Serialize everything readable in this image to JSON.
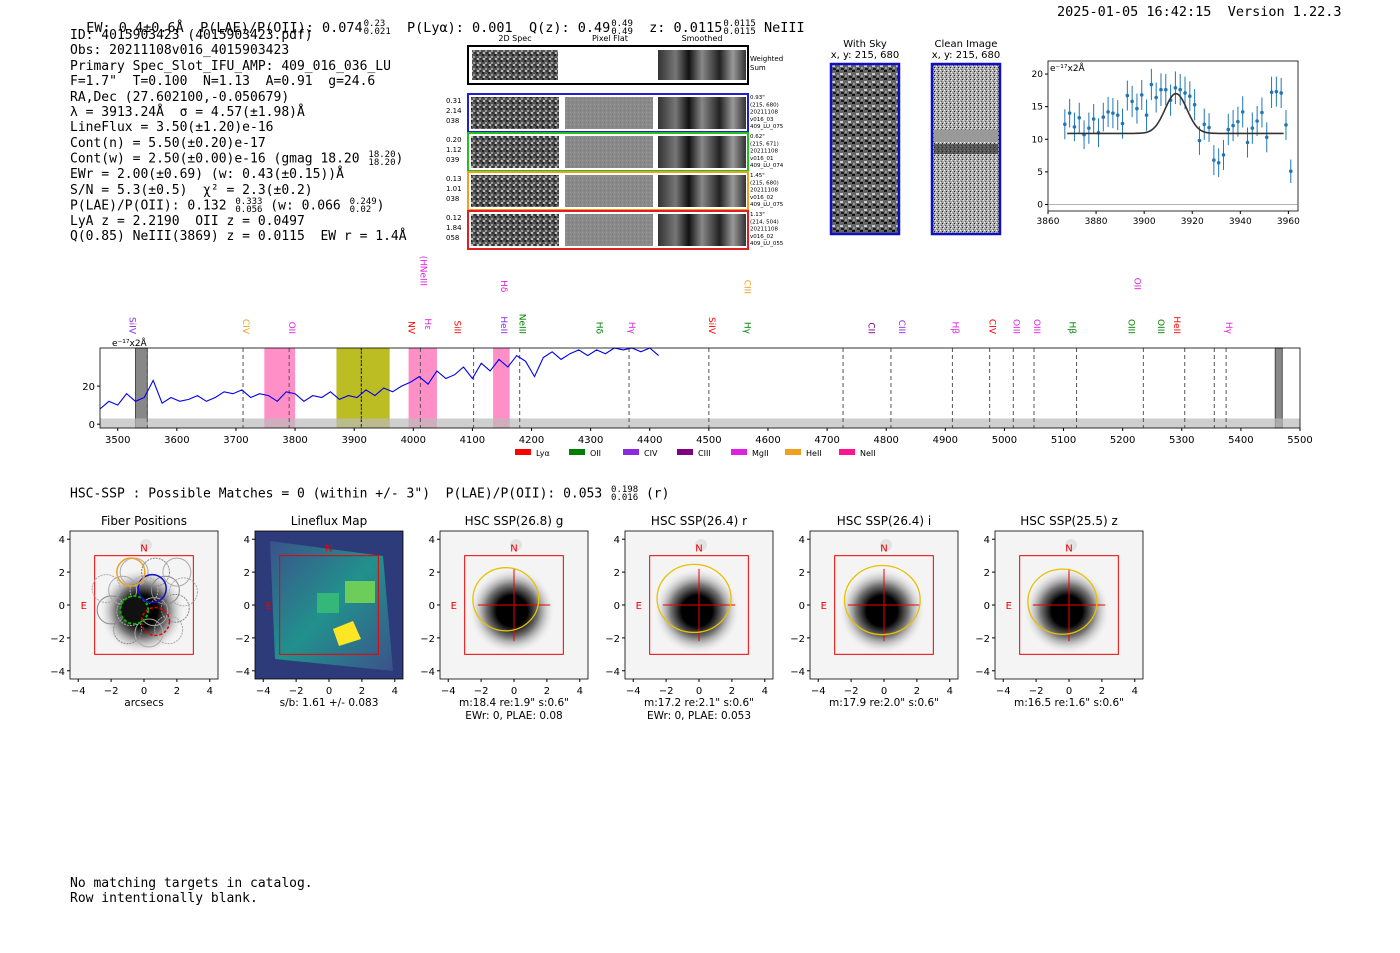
{
  "header": {
    "ew_label": "EW: 0.4±0.6Å",
    "plae_label": "P(LAE)/P(OII): 0.074",
    "plae_hi": "0.23",
    "plae_lo": "0.021",
    "plya": "P(Lyα): 0.001",
    "qz_label": "Q(z): 0.49",
    "qz_hi": "0.49",
    "qz_lo": "0.49",
    "z_label": "z: 0.0115",
    "z_hi": "0.0115",
    "z_lo": "0.0115",
    "line": "NeIII",
    "datetime": "2025-01-05 16:42:15",
    "version": "Version 1.22.3"
  },
  "info": {
    "id": "ID: 4015903423 (4015903423.pdf)",
    "obs": "Obs: 20211108v016_4015903423",
    "slot": "Primary Spec_Slot_IFU_AMP: 409_016_036_LU",
    "params": "F=1.7\"  T=0.100  N=1.13  A=0.91  g=24.6",
    "radec": "RA,Dec (27.602100,-0.050679)",
    "lambda": "λ = 3913.24Å  σ = 4.57(±1.98)Å",
    "lineflux": "LineFlux = 3.50(±1.20)e-16",
    "contn": "Cont(n) = 5.50(±0.20)e-17",
    "contw": "Cont(w) = 2.50(±0.00)e-16 (gmag 18.20",
    "contw_hi": "18.20",
    "contw_lo": "18.20",
    "ewr": "EWr = 2.00(±0.69) (w: 0.43(±0.15))Å",
    "sn": "S/N = 5.3(±0.5)  χ² = 2.3(±0.2)",
    "plae": "P(LAE)/P(OII): 0.132",
    "plae_hi": "0.333",
    "plae_lo": "0.056",
    "plae_w": "(w: 0.066",
    "plae_w_hi": "0.249",
    "plae_w_lo": "0.02",
    "lya": "LyA z = 2.2190  OII z = 0.0497",
    "q": "Q(0.85) NeIII(3869) z = 0.0115  EW r = 1.4Å"
  },
  "cutouts": {
    "col_headers": [
      "2D Spec",
      "Pixel Flat",
      "Smoothed"
    ],
    "weighted_sum": [
      "Weighted",
      "Sum"
    ],
    "rows": [
      {
        "left": [
          "0.31",
          "2.14",
          "038"
        ],
        "right": [
          "0.93\"",
          "(215, 680)",
          "20211108",
          "v016_03",
          "409_LU_075"
        ],
        "color": "#1f1fd0"
      },
      {
        "left": [
          "0.20",
          "1.12",
          "039"
        ],
        "right": [
          "0.62\"",
          "(215, 671)",
          "20211108",
          "v016_01",
          "409_LU_074"
        ],
        "color": "#22c022"
      },
      {
        "left": [
          "0.13",
          "1.01",
          "038"
        ],
        "right": [
          "1.45\"",
          "(215, 680)",
          "20211108",
          "v016_02",
          "409_LU_075"
        ],
        "color": "#f0a020"
      },
      {
        "left": [
          "0.12",
          "1.84",
          "058"
        ],
        "right": [
          "1.13\"",
          "(214, 504)",
          "20211108",
          "v016_02",
          "409_LU_055"
        ],
        "color": "#e02020"
      }
    ],
    "with_sky": [
      "With Sky",
      "x, y: 215, 680"
    ],
    "clean": [
      "Clean Image",
      "x, y: 215, 680"
    ]
  },
  "chart_data": [
    {
      "type": "scatter",
      "id": "line-fit",
      "ylabel": "e⁻¹⁷x2Å",
      "xlim": [
        3860,
        3964
      ],
      "ylim": [
        -1,
        22
      ],
      "xticks": [
        3860,
        3880,
        3900,
        3920,
        3940,
        3960
      ],
      "yticks": [
        0,
        5,
        10,
        15,
        20
      ],
      "points_x": [
        3867,
        3869,
        3871,
        3873,
        3875,
        3877,
        3879,
        3881,
        3883,
        3885,
        3887,
        3889,
        3891,
        3893,
        3895,
        3897,
        3899,
        3901,
        3903,
        3905,
        3907,
        3909,
        3911,
        3913,
        3915,
        3917,
        3919,
        3921,
        3923,
        3925,
        3927,
        3929,
        3931,
        3933,
        3935,
        3937,
        3939,
        3941,
        3943,
        3945,
        3947,
        3949,
        3951,
        3953,
        3955,
        3957,
        3959,
        3961
      ],
      "points_y": [
        12.3,
        14.0,
        11.9,
        13.3,
        10.7,
        11.7,
        13.1,
        11.0,
        13.4,
        14.2,
        14.0,
        13.7,
        12.4,
        16.7,
        15.8,
        14.7,
        16.8,
        13.7,
        18.4,
        16.4,
        17.6,
        17.6,
        16.0,
        17.9,
        17.6,
        17.1,
        16.6,
        15.3,
        9.8,
        12.3,
        11.8,
        6.8,
        6.4,
        7.6,
        11.5,
        12.1,
        12.7,
        14.2,
        9.5,
        11.7,
        12.8,
        14.1,
        10.3,
        17.2,
        17.3,
        17.1,
        12.2,
        5.1
      ],
      "errors": [
        2.3,
        2.2,
        2.2,
        2.3,
        2.2,
        2.4,
        2.3,
        2.2,
        2.2,
        2.3,
        2.3,
        2.3,
        2.3,
        2.3,
        2.4,
        2.3,
        2.3,
        2.4,
        2.4,
        2.3,
        2.5,
        2.4,
        2.4,
        2.5,
        2.4,
        2.5,
        2.3,
        2.4,
        2.2,
        2.4,
        2.2,
        2.3,
        2.2,
        2.3,
        2.4,
        2.4,
        2.3,
        2.4,
        2.3,
        2.4,
        2.3,
        2.3,
        2.3,
        2.4,
        2.3,
        2.3,
        2.3,
        1.8
      ],
      "fit": {
        "base": 10.9,
        "amp": 6.1,
        "mu": 3913.24,
        "sigma": 4.57,
        "x_range": [
          3868,
          3958
        ]
      }
    },
    {
      "type": "line",
      "id": "full-spectrum",
      "ylabel": "e⁻¹⁷x2Å",
      "xlim": [
        3470,
        5500
      ],
      "ylim": [
        -2,
        40
      ],
      "xticks": [
        3500,
        3600,
        3700,
        3800,
        3900,
        4000,
        4100,
        4200,
        4300,
        4400,
        4500,
        4600,
        4700,
        4800,
        4900,
        5000,
        5100,
        5200,
        5300,
        5400,
        5500
      ],
      "yticks": [
        0,
        20
      ],
      "spectrum_x": [
        3470,
        3485,
        3500,
        3515,
        3530,
        3545,
        3560,
        3575,
        3590,
        3605,
        3620,
        3635,
        3650,
        3665,
        3680,
        3695,
        3710,
        3725,
        3740,
        3755,
        3770,
        3785,
        3800,
        3815,
        3830,
        3845,
        3860,
        3875,
        3890,
        3905,
        3920,
        3935,
        3950,
        3965,
        3980,
        3995,
        4010,
        4025,
        4040,
        4055,
        4070,
        4085,
        4100,
        4115,
        4130,
        4145,
        4160,
        4175,
        4190,
        4205,
        4220,
        4235,
        4250,
        4265,
        4280,
        4295,
        4310,
        4325,
        4340,
        4355,
        4370,
        4385,
        4400,
        4415
      ],
      "spectrum_y": [
        8,
        12,
        10,
        16,
        12,
        14,
        23,
        11,
        14,
        12,
        13,
        15,
        12,
        14,
        17,
        16,
        18,
        14,
        16,
        15,
        12,
        17,
        16,
        12,
        15,
        14,
        17,
        13,
        15,
        14,
        18,
        15,
        19,
        17,
        20,
        22,
        25,
        21,
        28,
        24,
        26,
        30,
        24,
        32,
        28,
        34,
        30,
        36,
        33,
        25,
        35,
        38,
        34,
        37,
        39,
        36,
        39,
        37,
        40,
        39,
        40,
        38,
        40,
        36
      ],
      "noise_level": 3,
      "dashed_lines_x": [
        3550,
        3712,
        3790,
        3912,
        4012,
        4102,
        4180,
        4365,
        4500,
        4727,
        4808,
        4912,
        4975,
        5015,
        5050,
        5122,
        5235,
        5305,
        5355,
        5375
      ],
      "shaded_pink": [
        [
          3748,
          3800
        ],
        [
          3992,
          4040
        ],
        [
          4135,
          4163
        ]
      ],
      "shaded_olive": [
        [
          3870,
          3960
        ]
      ],
      "shaded_gray": [
        [
          3530,
          3550
        ],
        [
          5458,
          5470
        ]
      ],
      "line_labels": [
        {
          "x": 3520,
          "text": "SiIV",
          "color": "#8a2be2",
          "y_frac": 0.1
        },
        {
          "x": 3712,
          "text": "CIV",
          "color": "#f0a020",
          "y_frac": 0.1
        },
        {
          "x": 3790,
          "text": "OII",
          "color": "#e020e0",
          "y_frac": 0.1
        },
        {
          "x": 3992,
          "text": "NV",
          "color": "#ff0000",
          "y_frac": 0.1
        },
        {
          "x": 4020,
          "text": "Hε",
          "color": "#e020e0",
          "y_frac": 0.15
        },
        {
          "x": 4012,
          "text": "NeIII",
          "color": "#e020e0",
          "y_frac": 0.7
        },
        {
          "x": 4012,
          "text": "(H",
          "color": "#e020e0",
          "y_frac": 0.95
        },
        {
          "x": 4070,
          "text": "SiII",
          "color": "#ff0000",
          "y_frac": 0.1
        },
        {
          "x": 4148,
          "text": "HeII",
          "color": "#8a2be2",
          "y_frac": 0.1
        },
        {
          "x": 4148,
          "text": "Hδ",
          "color": "#e020e0",
          "y_frac": 0.62
        },
        {
          "x": 4180,
          "text": "NeIII",
          "color": "#008000",
          "y_frac": 0.1
        },
        {
          "x": 4310,
          "text": "Hδ",
          "color": "#008000",
          "y_frac": 0.1
        },
        {
          "x": 4365,
          "text": "Hγ",
          "color": "#e020e0",
          "y_frac": 0.1
        },
        {
          "x": 4500,
          "text": "SiIV",
          "color": "#ff0000",
          "y_frac": 0.1
        },
        {
          "x": 4560,
          "text": "Hγ",
          "color": "#008000",
          "y_frac": 0.1
        },
        {
          "x": 4560,
          "text": "CIII",
          "color": "#f0a020",
          "y_frac": 0.6
        },
        {
          "x": 4770,
          "text": "CII",
          "color": "#800080",
          "y_frac": 0.1
        },
        {
          "x": 4822,
          "text": "CIII",
          "color": "#8a2be2",
          "y_frac": 0.1
        },
        {
          "x": 4912,
          "text": "Hβ",
          "color": "#e020e0",
          "y_frac": 0.1
        },
        {
          "x": 4975,
          "text": "CIV",
          "color": "#ff0000",
          "y_frac": 0.1
        },
        {
          "x": 5015,
          "text": "OIII",
          "color": "#e020e0",
          "y_frac": 0.1
        },
        {
          "x": 5050,
          "text": "OIII",
          "color": "#e020e0",
          "y_frac": 0.1
        },
        {
          "x": 5110,
          "text": "Hβ",
          "color": "#008000",
          "y_frac": 0.1
        },
        {
          "x": 5210,
          "text": "OIII",
          "color": "#008000",
          "y_frac": 0.1
        },
        {
          "x": 5220,
          "text": "OII",
          "color": "#e020e0",
          "y_frac": 0.65
        },
        {
          "x": 5260,
          "text": "OIII",
          "color": "#008000",
          "y_frac": 0.1
        },
        {
          "x": 5287,
          "text": "HeII",
          "color": "#ff0000",
          "y_frac": 0.1
        },
        {
          "x": 5375,
          "text": "Hγ",
          "color": "#e020e0",
          "y_frac": 0.1
        }
      ],
      "legend": [
        {
          "label": "Lyα",
          "color": "#ff0000"
        },
        {
          "label": "OII",
          "color": "#008000"
        },
        {
          "label": "CIV",
          "color": "#8a2be2"
        },
        {
          "label": "CIII",
          "color": "#800080"
        },
        {
          "label": "MgII",
          "color": "#e020e0"
        },
        {
          "label": "HeII",
          "color": "#f0a020"
        },
        {
          "label": "NeII",
          "color": "#ff1493"
        }
      ]
    }
  ],
  "hsc": {
    "summary": "HSC-SSP : Possible Matches = 0 (within +/- 3\")  P(LAE)/P(OII): 0.053",
    "summary_hi": "0.198",
    "summary_lo": "0.016",
    "summary_band": "(r)",
    "axis_ticks": [
      "4",
      "2",
      "0",
      "−2",
      "−4"
    ],
    "x_ticks": [
      "−4",
      "−2",
      "0",
      "2",
      "4"
    ],
    "north": "N",
    "east": "E",
    "panels": [
      {
        "title": "Fiber Positions",
        "captions": [
          "arcsecs"
        ],
        "kind": "fibers"
      },
      {
        "title": "Lineflux Map",
        "captions": [
          "s/b: 1.61 +/- 0.083"
        ],
        "kind": "lineflux"
      },
      {
        "title": "HSC SSP(26.8) g",
        "captions": [
          "m:18.4  re:1.9\"  s:0.6\"",
          "EWr: 0, PLAE: 0.08"
        ],
        "kind": "galaxy",
        "ellipse": [
          0.5,
          0.35,
          0.2
        ]
      },
      {
        "title": "HSC SSP(26.4) r",
        "captions": [
          "m:17.2  re:2.1\"  s:0.6\"",
          "EWr: 0, PLAE: 0.053"
        ],
        "kind": "galaxy",
        "ellipse": [
          0.3,
          0.4,
          0.45
        ]
      },
      {
        "title": "HSC SSP(26.4) i",
        "captions": [
          "m:17.9  re:2.0\"  s:0.6\""
        ],
        "kind": "galaxy",
        "ellipse": [
          0.1,
          0.3,
          0.5
        ]
      },
      {
        "title": "HSC SSP(25.5) z",
        "captions": [
          "m:16.5  re:1.6\"  s:0.6\""
        ],
        "kind": "galaxy",
        "ellipse": [
          0.4,
          0.2,
          0.3
        ]
      }
    ]
  },
  "footer": {
    "line1": "No matching targets in catalog.",
    "line2": "Row intentionally blank."
  }
}
